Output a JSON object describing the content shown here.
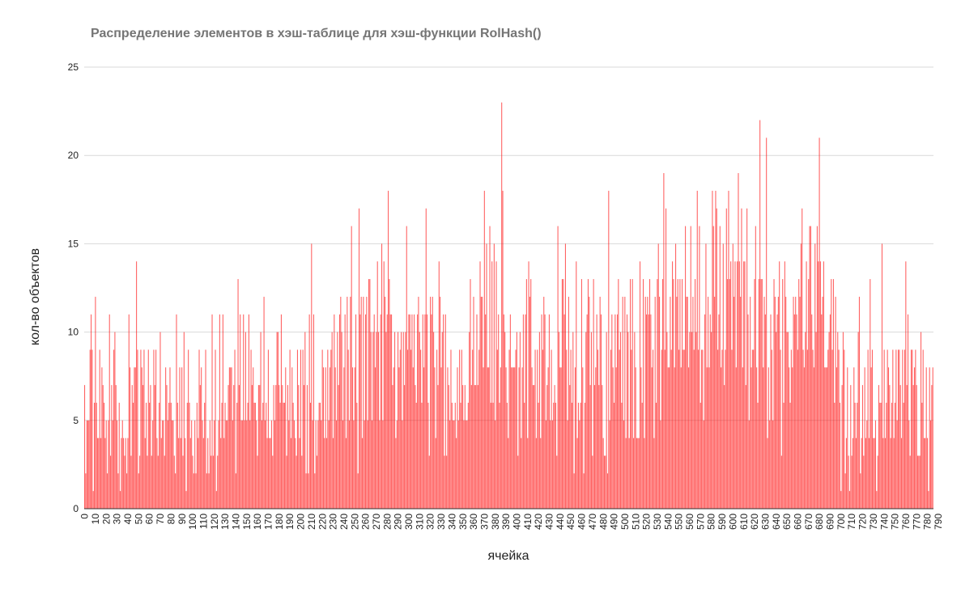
{
  "chart_data": {
    "type": "bar",
    "title": "Распределение элементов в хэш-таблице для хэш-функции RolHash()",
    "xlabel": "ячейка",
    "ylabel": "кол-во объектов",
    "ylim": [
      0,
      25
    ],
    "y_ticks": [
      "0",
      "5",
      "10",
      "15",
      "20",
      "25"
    ],
    "x_tick_labels": [
      "0",
      "10",
      "20",
      "30",
      "40",
      "50",
      "60",
      "70",
      "80",
      "90",
      "100",
      "110",
      "120",
      "130",
      "140",
      "150",
      "160",
      "170",
      "180",
      "190",
      "200",
      "210",
      "220",
      "230",
      "240",
      "250",
      "260",
      "270",
      "280",
      "290",
      "300",
      "310",
      "320",
      "330",
      "340",
      "350",
      "360",
      "370",
      "380",
      "390",
      "400",
      "410",
      "420",
      "430",
      "440",
      "450",
      "460",
      "470",
      "480",
      "490",
      "500",
      "510",
      "520",
      "530",
      "540",
      "550",
      "560",
      "570",
      "580",
      "590",
      "600",
      "610",
      "620",
      "630",
      "640",
      "650",
      "660",
      "670",
      "680",
      "690",
      "700",
      "710",
      "720",
      "730",
      "740",
      "750",
      "760",
      "770",
      "780",
      "790"
    ],
    "bar_color": "#ff0000",
    "grid": true,
    "categories_range": [
      0,
      797
    ],
    "values": [
      7,
      2,
      5,
      5,
      5,
      9,
      11,
      9,
      1,
      6,
      12,
      6,
      4,
      4,
      9,
      4,
      8,
      7,
      6,
      4,
      5,
      2,
      5,
      11,
      3,
      7,
      5,
      9,
      10,
      7,
      5,
      2,
      6,
      1,
      4,
      5,
      4,
      3,
      4,
      2,
      4,
      11,
      8,
      3,
      7,
      6,
      8,
      8,
      14,
      9,
      2,
      3,
      9,
      8,
      7,
      9,
      4,
      6,
      3,
      9,
      6,
      7,
      3,
      5,
      9,
      7,
      9,
      4,
      3,
      6,
      10,
      4,
      5,
      5,
      3,
      8,
      7,
      5,
      6,
      8,
      6,
      5,
      5,
      3,
      2,
      11,
      6,
      4,
      8,
      4,
      8,
      3,
      10,
      4,
      1,
      6,
      9,
      6,
      4,
      5,
      3,
      2,
      5,
      2,
      6,
      4,
      9,
      7,
      8,
      5,
      4,
      6,
      9,
      2,
      4,
      2,
      5,
      3,
      11,
      3,
      5,
      9,
      1,
      3,
      5,
      11,
      4,
      6,
      11,
      4,
      6,
      5,
      5,
      7,
      8,
      8,
      8,
      5,
      7,
      9,
      2,
      6,
      13,
      7,
      11,
      5,
      5,
      11,
      5,
      10,
      5,
      6,
      11,
      5,
      9,
      7,
      8,
      6,
      6,
      5,
      3,
      7,
      7,
      10,
      5,
      6,
      12,
      5,
      6,
      4,
      9,
      4,
      4,
      5,
      3,
      7,
      5,
      7,
      10,
      10,
      7,
      6,
      11,
      7,
      6,
      6,
      8,
      3,
      7,
      5,
      9,
      4,
      8,
      6,
      5,
      4,
      3,
      9,
      7,
      4,
      9,
      3,
      9,
      7,
      10,
      2,
      7,
      2,
      11,
      6,
      15,
      5,
      11,
      2,
      5,
      3,
      5,
      6,
      6,
      5,
      9,
      8,
      4,
      8,
      4,
      9,
      5,
      8,
      9,
      10,
      4,
      11,
      8,
      5,
      10,
      7,
      11,
      12,
      10,
      5,
      8,
      11,
      4,
      12,
      9,
      5,
      12,
      16,
      8,
      5,
      8,
      11,
      6,
      2,
      17,
      11,
      12,
      4,
      12,
      5,
      11,
      12,
      5,
      13,
      13,
      10,
      5,
      10,
      11,
      8,
      10,
      14,
      10,
      5,
      11,
      15,
      5,
      14,
      12,
      10,
      11,
      18,
      13,
      11,
      11,
      7,
      8,
      10,
      4,
      5,
      10,
      8,
      9,
      10,
      5,
      10,
      7,
      10,
      16,
      9,
      11,
      11,
      9,
      11,
      8,
      11,
      7,
      6,
      11,
      12,
      10,
      9,
      6,
      11,
      8,
      11,
      17,
      11,
      6,
      3,
      12,
      11,
      12,
      10,
      8,
      4,
      9,
      7,
      14,
      12,
      8,
      10,
      11,
      3,
      11,
      3,
      8,
      7,
      5,
      9,
      6,
      5,
      5,
      6,
      4,
      8,
      5,
      9,
      6,
      9,
      7,
      5,
      7,
      5,
      5,
      6,
      10,
      13,
      7,
      9,
      12,
      7,
      7,
      11,
      7,
      9,
      14,
      12,
      12,
      8,
      18,
      11,
      15,
      8,
      8,
      16,
      6,
      14,
      6,
      15,
      5,
      14,
      9,
      11,
      6,
      8,
      23,
      18,
      11,
      10,
      8,
      6,
      4,
      9,
      11,
      8,
      8,
      8,
      8,
      9,
      10,
      3,
      8,
      10,
      4,
      8,
      11,
      6,
      11,
      13,
      4,
      14,
      12,
      13,
      8,
      7,
      7,
      9,
      4,
      9,
      6,
      10,
      4,
      11,
      9,
      12,
      11,
      5,
      7,
      8,
      11,
      5,
      9,
      5,
      6,
      7,
      6,
      3,
      16,
      10,
      8,
      8,
      13,
      13,
      11,
      15,
      9,
      5,
      12,
      7,
      9,
      6,
      10,
      2,
      8,
      14,
      4,
      6,
      5,
      6,
      13,
      8,
      2,
      6,
      10,
      11,
      13,
      12,
      7,
      10,
      3,
      13,
      7,
      8,
      11,
      9,
      7,
      12,
      11,
      7,
      4,
      3,
      3,
      10,
      2,
      18,
      5,
      9,
      11,
      8,
      6,
      11,
      8,
      11,
      13,
      9,
      10,
      6,
      12,
      5,
      12,
      4,
      11,
      10,
      4,
      13,
      9,
      13,
      4,
      10,
      8,
      4,
      4,
      4,
      14,
      8,
      6,
      13,
      4,
      12,
      11,
      12,
      11,
      13,
      11,
      8,
      9,
      4,
      12,
      6,
      13,
      15,
      12,
      5,
      9,
      13,
      19,
      9,
      17,
      10,
      8,
      8,
      12,
      9,
      14,
      13,
      8,
      15,
      12,
      13,
      9,
      13,
      8,
      13,
      9,
      9,
      16,
      12,
      12,
      8,
      10,
      16,
      10,
      12,
      9,
      13,
      10,
      18,
      9,
      16,
      6,
      9,
      9,
      5,
      11,
      15,
      8,
      12,
      8,
      11,
      10,
      18,
      16,
      12,
      18,
      17,
      9,
      11,
      16,
      8,
      9,
      15,
      7,
      9,
      17,
      13,
      18,
      13,
      14,
      9,
      15,
      12,
      14,
      8,
      14,
      19,
      14,
      12,
      17,
      8,
      14,
      14,
      7,
      17,
      11,
      5,
      12,
      8,
      9,
      9,
      13,
      16,
      8,
      6,
      13,
      22,
      13,
      13,
      8,
      12,
      11,
      21,
      4,
      8,
      5,
      11,
      9,
      5,
      13,
      12,
      10,
      11,
      12,
      14,
      9,
      3,
      13,
      6,
      14,
      12,
      10,
      10,
      8,
      6,
      9,
      8,
      12,
      11,
      12,
      11,
      9,
      13,
      12,
      15,
      17,
      9,
      8,
      10,
      14,
      9,
      13,
      16,
      16,
      11,
      9,
      8,
      15,
      10,
      16,
      14,
      21,
      14,
      11,
      12,
      14,
      8,
      8,
      8,
      9,
      10,
      11,
      13,
      9,
      13,
      6,
      12,
      8,
      10,
      9,
      6,
      1,
      7,
      10,
      9,
      2,
      4,
      8,
      3,
      1,
      7,
      3,
      4,
      8,
      6,
      4,
      6,
      10,
      12,
      2,
      4,
      7,
      3,
      8,
      4,
      5,
      9,
      4,
      13,
      8,
      9,
      4,
      4,
      5,
      1,
      3,
      7,
      6,
      6,
      15,
      4,
      9,
      4,
      6,
      9,
      8,
      7,
      4,
      6,
      9,
      4,
      6,
      9,
      5,
      9,
      9,
      7,
      4,
      9,
      6,
      9,
      14,
      7,
      11,
      5,
      3,
      9,
      9,
      7,
      8,
      9,
      7,
      3,
      3,
      3,
      10,
      6,
      9,
      4,
      4,
      8,
      4,
      1,
      8,
      5,
      7,
      8
    ]
  }
}
